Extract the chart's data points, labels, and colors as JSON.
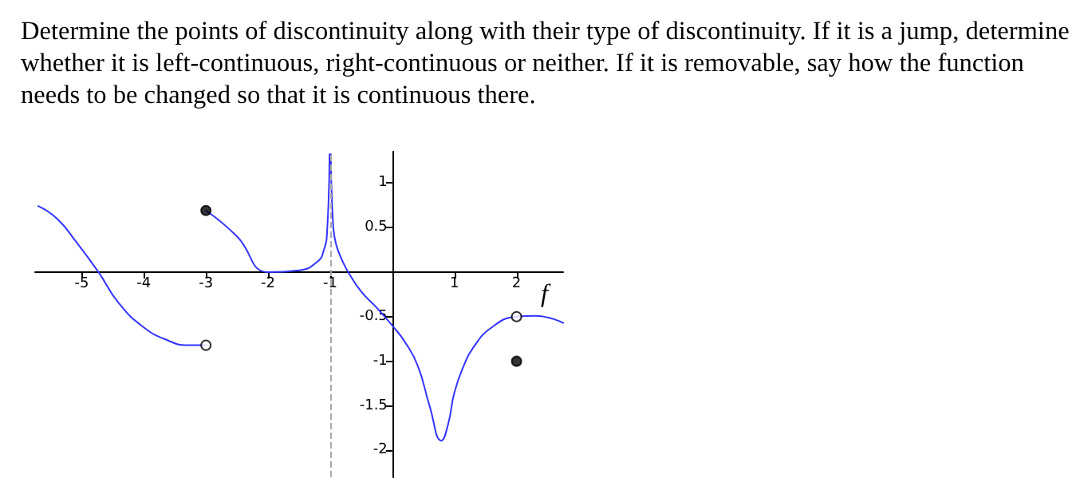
{
  "chart_data": {
    "type": "line",
    "title": "Determine the points of discontinuity along with their type of discontinuity. If it is a jump, determine whether it is left-continuous, right-continuous or neither. If it is removable, say how the function needs to be changed so that it is continuous there.",
    "xlim": [
      -5.75,
      2.75
    ],
    "ylim": [
      -2.3,
      1.35
    ],
    "xticks": [
      -5,
      -4,
      -3,
      -2,
      -1,
      1,
      2
    ],
    "yticks": [
      -2,
      -1.5,
      -1,
      -0.5,
      0.5,
      1
    ],
    "line_style": "solid",
    "marker": "none",
    "series": [
      {
        "color": "#3333ff",
        "x": [
          -5.7,
          -5.4,
          -5.1,
          -4.73,
          -4.4,
          -4,
          -3.6,
          -3.3,
          -3
        ],
        "values": [
          0.74,
          0.6,
          0.35,
          0,
          -0.35,
          -0.62,
          -0.77,
          -0.82,
          -0.82
        ]
      },
      {
        "color": "#3333ff",
        "x": [
          -3,
          -2.5,
          -2,
          -1.5,
          -1.2,
          -1.1,
          -1.05,
          -1.01
        ],
        "values": [
          0.69,
          0.4,
          0,
          0.02,
          0.12,
          0.25,
          0.45,
          1.32
        ]
      },
      {
        "color": "#3333ff",
        "x": [
          -0.99,
          -0.95,
          -0.9,
          -0.8,
          -0.71,
          -0.5,
          -0.25,
          0,
          0.2,
          0.41,
          0.6,
          0.79,
          0.9,
          1,
          1.15,
          1.3,
          1.6,
          2,
          2.3,
          2.75
        ],
        "values": [
          1.32,
          0.5,
          0.3,
          0.12,
          0,
          -0.22,
          -0.4,
          -0.6,
          -0.78,
          -1.05,
          -1.5,
          -1.89,
          -1.7,
          -1.35,
          -1.05,
          -0.85,
          -0.62,
          -0.5,
          -0.49,
          -0.57
        ]
      },
      {
        "type": "scatter",
        "marker": "circle",
        "color": "#000000",
        "x": [
          -3,
          2
        ],
        "values": [
          0.69,
          -1
        ]
      },
      {
        "type": "scatter",
        "marker": "circle",
        "color": "#ffffff",
        "x": [
          -3,
          2
        ],
        "values": [
          -0.82,
          -0.5
        ]
      }
    ],
    "ref_lines": [
      {
        "axis": "x",
        "value": -1,
        "label": null,
        "color": "#aaaaaa",
        "line_style": "dashed"
      }
    ],
    "annotations": [
      "f"
    ]
  }
}
